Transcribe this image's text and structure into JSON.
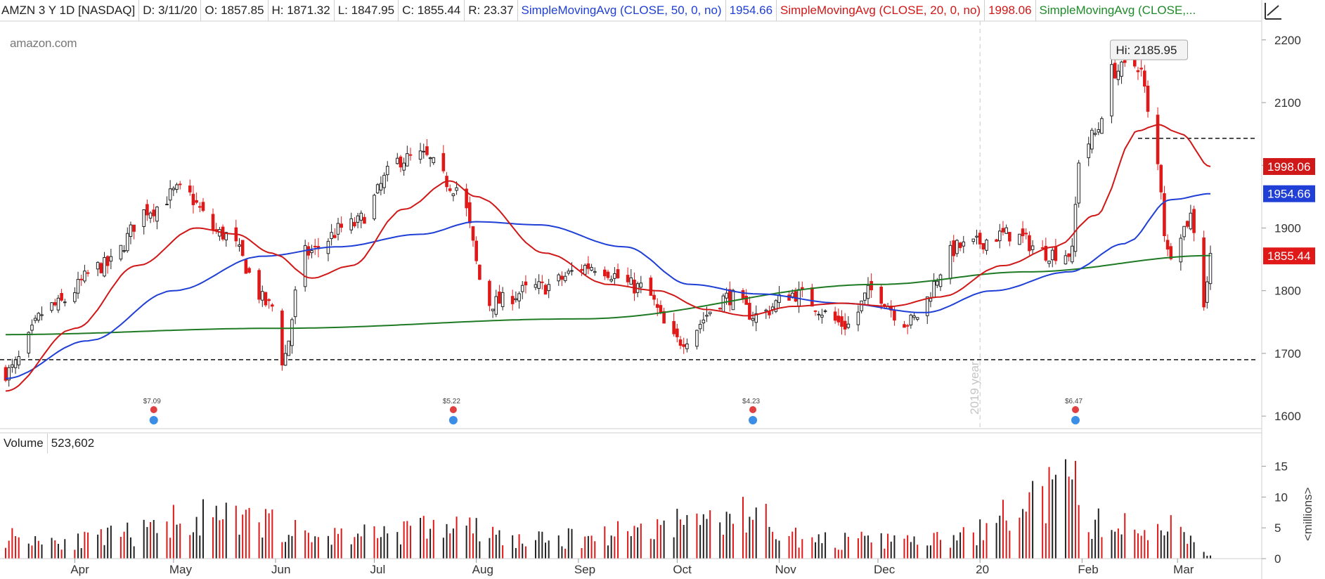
{
  "header": {
    "symbol": "AMZN 3 Y 1D [NASDAQ]",
    "date": "D: 3/11/20",
    "open": "O: 1857.85",
    "high": "H: 1871.32",
    "low": "L: 1847.95",
    "close": "C: 1855.44",
    "range": "R: 23.37",
    "sma50_label": "SimpleMovingAvg (CLOSE, 50, 0, no)",
    "sma50_value": "1954.66",
    "sma20_label": "SimpleMovingAvg (CLOSE, 20, 0, no)",
    "sma20_value": "1998.06",
    "sma200_label": "SimpleMovingAvg (CLOSE,..."
  },
  "logo": "amazon.com",
  "hi_label": "Hi: 2185.95",
  "year_label": "2019 year",
  "volume": {
    "label": "Volume",
    "value": "523,602",
    "unit_label": "<millions>",
    "ticks": [
      "15",
      "10",
      "5",
      "0"
    ]
  },
  "earnings": [
    "$7.09",
    "$5.22",
    "$4.23",
    "$6.47"
  ],
  "price_tags": {
    "sma20": "1998.06",
    "sma50": "1954.66",
    "close": "1855.44"
  },
  "colors": {
    "up": "#222222",
    "down": "#e01818",
    "sma20": "#d01818",
    "sma50": "#1f3fd6",
    "sma200": "#1f7a24",
    "grid": "#dddddd"
  },
  "chart_data": {
    "type": "candlestick",
    "title": "AMZN 3 Y 1D [NASDAQ]",
    "ylim": [
      1580,
      2230
    ],
    "yticks": [
      1600,
      1700,
      1800,
      1900,
      2000,
      2100,
      2200
    ],
    "x_labels": [
      "Apr",
      "May",
      "Jun",
      "Jul",
      "Aug",
      "Sep",
      "Oct",
      "Nov",
      "Dec",
      "20",
      "Feb",
      "Mar"
    ],
    "support_level": 1690,
    "resistance_level": 2043,
    "price_anchors": [
      [
        "2019-03-11",
        1670
      ],
      [
        "2019-03-25",
        1775
      ],
      [
        "2019-04-10",
        1840
      ],
      [
        "2019-04-24",
        1930
      ],
      [
        "2019-05-03",
        1960
      ],
      [
        "2019-05-16",
        1890
      ],
      [
        "2019-05-31",
        1775
      ],
      [
        "2019-06-03",
        1690
      ],
      [
        "2019-06-10",
        1860
      ],
      [
        "2019-06-24",
        1905
      ],
      [
        "2019-07-10",
        2010
      ],
      [
        "2019-07-15",
        2015
      ],
      [
        "2019-07-26",
        1965
      ],
      [
        "2019-08-05",
        1780
      ],
      [
        "2019-08-20",
        1805
      ],
      [
        "2019-09-05",
        1840
      ],
      [
        "2019-09-20",
        1805
      ],
      [
        "2019-10-01",
        1720
      ],
      [
        "2019-10-17",
        1790
      ],
      [
        "2019-10-25",
        1760
      ],
      [
        "2019-11-05",
        1795
      ],
      [
        "2019-11-22",
        1745
      ],
      [
        "2019-11-29",
        1800
      ],
      [
        "2019-12-10",
        1750
      ],
      [
        "2019-12-26",
        1870
      ],
      [
        "2020-01-10",
        1890
      ],
      [
        "2020-01-22",
        1860
      ],
      [
        "2020-01-29",
        1860
      ],
      [
        "2020-01-31",
        2010
      ],
      [
        "2020-02-05",
        2050
      ],
      [
        "2020-02-10",
        2150
      ],
      [
        "2020-02-18",
        2160
      ],
      [
        "2020-02-24",
        2000
      ],
      [
        "2020-02-27",
        1860
      ],
      [
        "2020-03-03",
        1900
      ],
      [
        "2020-03-05",
        1920
      ],
      [
        "2020-03-09",
        1780
      ],
      [
        "2020-03-11",
        1855
      ]
    ],
    "sma20_anchors": [
      [
        "2019-03-11",
        1640
      ],
      [
        "2019-04-01",
        1740
      ],
      [
        "2019-04-20",
        1840
      ],
      [
        "2019-05-08",
        1900
      ],
      [
        "2019-05-20",
        1890
      ],
      [
        "2019-05-31",
        1860
      ],
      [
        "2019-06-12",
        1820
      ],
      [
        "2019-06-24",
        1840
      ],
      [
        "2019-07-10",
        1930
      ],
      [
        "2019-07-24",
        1975
      ],
      [
        "2019-08-01",
        1950
      ],
      [
        "2019-08-22",
        1860
      ],
      [
        "2019-09-10",
        1810
      ],
      [
        "2019-09-25",
        1800
      ],
      [
        "2019-10-10",
        1770
      ],
      [
        "2019-10-22",
        1760
      ],
      [
        "2019-11-05",
        1775
      ],
      [
        "2019-11-20",
        1780
      ],
      [
        "2019-12-05",
        1775
      ],
      [
        "2019-12-20",
        1790
      ],
      [
        "2020-01-08",
        1840
      ],
      [
        "2020-01-24",
        1870
      ],
      [
        "2020-02-05",
        1920
      ],
      [
        "2020-02-18",
        2055
      ],
      [
        "2020-02-24",
        2065
      ],
      [
        "2020-03-02",
        2050
      ],
      [
        "2020-03-11",
        1998
      ]
    ],
    "sma50_anchors": [
      [
        "2019-03-11",
        1660
      ],
      [
        "2019-04-05",
        1720
      ],
      [
        "2019-05-01",
        1800
      ],
      [
        "2019-05-28",
        1855
      ],
      [
        "2019-06-20",
        1870
      ],
      [
        "2019-07-15",
        1890
      ],
      [
        "2019-08-01",
        1910
      ],
      [
        "2019-08-20",
        1905
      ],
      [
        "2019-09-15",
        1870
      ],
      [
        "2019-10-05",
        1810
      ],
      [
        "2019-10-25",
        1795
      ],
      [
        "2019-11-20",
        1780
      ],
      [
        "2019-12-15",
        1765
      ],
      [
        "2020-01-05",
        1800
      ],
      [
        "2020-01-28",
        1830
      ],
      [
        "2020-02-14",
        1875
      ],
      [
        "2020-02-28",
        1945
      ],
      [
        "2020-03-11",
        1954.66
      ]
    ],
    "sma200_anchors": [
      [
        "2019-03-11",
        1730
      ],
      [
        "2019-06-01",
        1740
      ],
      [
        "2019-09-01",
        1755
      ],
      [
        "2019-12-01",
        1810
      ],
      [
        "2020-01-15",
        1830
      ],
      [
        "2020-03-11",
        1856
      ]
    ],
    "volume_anchors": [
      [
        "2019-03-11",
        5
      ],
      [
        "2019-04-01",
        4
      ],
      [
        "2019-04-25",
        6
      ],
      [
        "2019-05-01",
        9
      ],
      [
        "2019-06-01",
        8
      ],
      [
        "2019-06-10",
        5
      ],
      [
        "2019-07-26",
        7
      ],
      [
        "2019-08-15",
        4
      ],
      [
        "2019-10-25",
        9.5
      ],
      [
        "2019-11-10",
        4
      ],
      [
        "2019-12-20",
        4
      ],
      [
        "2020-01-31",
        15.5
      ],
      [
        "2020-02-03",
        8
      ],
      [
        "2020-02-24",
        6
      ],
      [
        "2020-02-28",
        9.5
      ],
      [
        "2020-03-11",
        0.5
      ]
    ]
  }
}
